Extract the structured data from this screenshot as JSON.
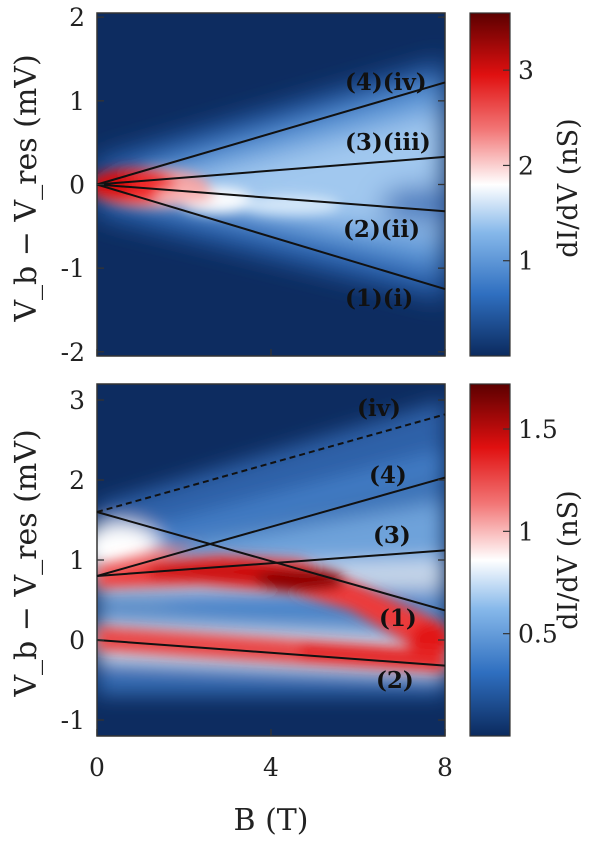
{
  "chart_data": [
    {
      "type": "heatmap",
      "xlabel": "",
      "ylabel": "V_b − V_res (mV)",
      "xlim": [
        0,
        8
      ],
      "ylim": [
        -2.05,
        2.05
      ],
      "xticks": [],
      "yticks": [
        "2",
        "1",
        "0",
        "-1",
        "-2"
      ],
      "ytick_values": [
        2,
        1,
        0,
        -1,
        -2
      ],
      "colorbar": {
        "label": "dI/dV (nS)",
        "range": [
          0,
          3.6
        ],
        "ticks": [
          "3",
          "2",
          "1"
        ],
        "tick_values": [
          3,
          2,
          1
        ]
      },
      "lines": [
        {
          "label": "(4)(iv)",
          "x": [
            0,
            8
          ],
          "y": [
            0,
            1.22
          ],
          "style": "solid"
        },
        {
          "label": "(3)(iii)",
          "x": [
            0,
            8
          ],
          "y": [
            0,
            0.33
          ],
          "style": "solid"
        },
        {
          "label": "(2)(ii)",
          "x": [
            0,
            8
          ],
          "y": [
            0,
            -0.32
          ],
          "style": "solid"
        },
        {
          "label": "(1)(i)",
          "x": [
            0,
            8
          ],
          "y": [
            0,
            -1.25
          ],
          "style": "solid"
        }
      ],
      "annotations": [
        "(4)(iv)",
        "(3)(iii)",
        "(2)(ii)",
        "(1)(i)"
      ]
    },
    {
      "type": "heatmap",
      "xlabel": "B (T)",
      "ylabel": "V_b − V_res (mV)",
      "xlim": [
        0,
        8
      ],
      "ylim": [
        -1.2,
        3.2
      ],
      "xticks": [
        "0",
        "4",
        "8"
      ],
      "xtick_values": [
        0,
        4,
        8
      ],
      "yticks": [
        "3",
        "2",
        "1",
        "0",
        "-1"
      ],
      "ytick_values": [
        3,
        2,
        1,
        0,
        -1
      ],
      "colorbar": {
        "label": "dI/dV (nS)",
        "range": [
          0,
          1.72
        ],
        "ticks": [
          "1.5",
          "1",
          "0.5"
        ],
        "tick_values": [
          1.5,
          1,
          0.5
        ]
      },
      "lines": [
        {
          "label": "(iv)",
          "x": [
            0,
            8
          ],
          "y": [
            1.6,
            2.82
          ],
          "style": "dashed"
        },
        {
          "label": "(4)",
          "x": [
            0,
            8
          ],
          "y": [
            0.8,
            2.03
          ],
          "style": "solid"
        },
        {
          "label": "(3)",
          "x": [
            0,
            8
          ],
          "y": [
            0.8,
            1.12
          ],
          "style": "solid"
        },
        {
          "label": "(1)",
          "x": [
            0,
            8
          ],
          "y": [
            1.6,
            0.37
          ],
          "style": "solid"
        },
        {
          "label": "(2)",
          "x": [
            0,
            8
          ],
          "y": [
            0,
            -0.32
          ],
          "style": "solid"
        }
      ],
      "annotations": [
        "(iv)",
        "(4)",
        "(3)",
        "(1)",
        "(2)"
      ]
    }
  ]
}
